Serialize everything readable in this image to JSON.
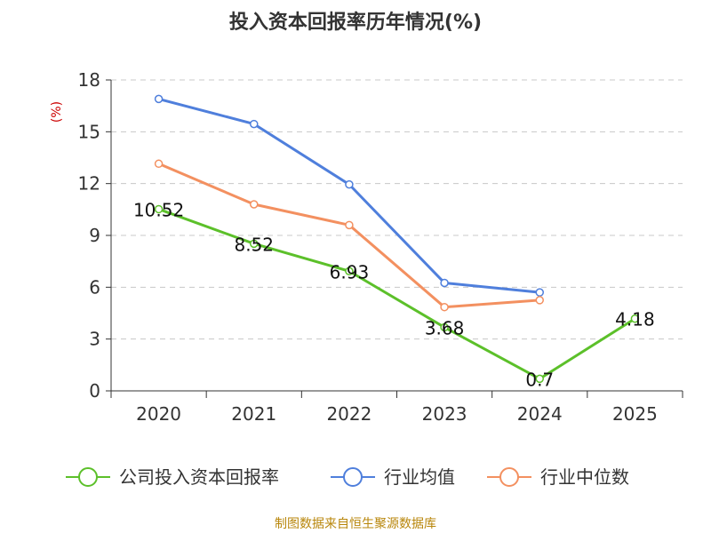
{
  "chart_data": {
    "type": "line",
    "title": "投入资本回报率历年情况(%)",
    "ylabel": "(%)",
    "categories": [
      "2020",
      "2021",
      "2022",
      "2023",
      "2024",
      "2025"
    ],
    "yticks": [
      0,
      3,
      6,
      9,
      12,
      15,
      18
    ],
    "ylim": [
      0,
      18
    ],
    "grid": true,
    "legend_position": "bottom",
    "series": [
      {
        "name": "公司投入资本回报率",
        "color": "#5cc02a",
        "values": [
          10.52,
          8.52,
          6.93,
          3.68,
          0.7,
          4.18
        ],
        "labels": [
          "10.52",
          "8.52",
          "6.93",
          "3.68",
          "0.7",
          "4.18"
        ]
      },
      {
        "name": "行业均值",
        "color": "#4f7fdc",
        "values": [
          16.9,
          15.45,
          11.95,
          6.25,
          5.7,
          null
        ]
      },
      {
        "name": "行业中位数",
        "color": "#f39060",
        "values": [
          13.15,
          10.8,
          9.6,
          4.85,
          5.25,
          null
        ]
      }
    ],
    "source": "制图数据来自恒生聚源数据库"
  }
}
